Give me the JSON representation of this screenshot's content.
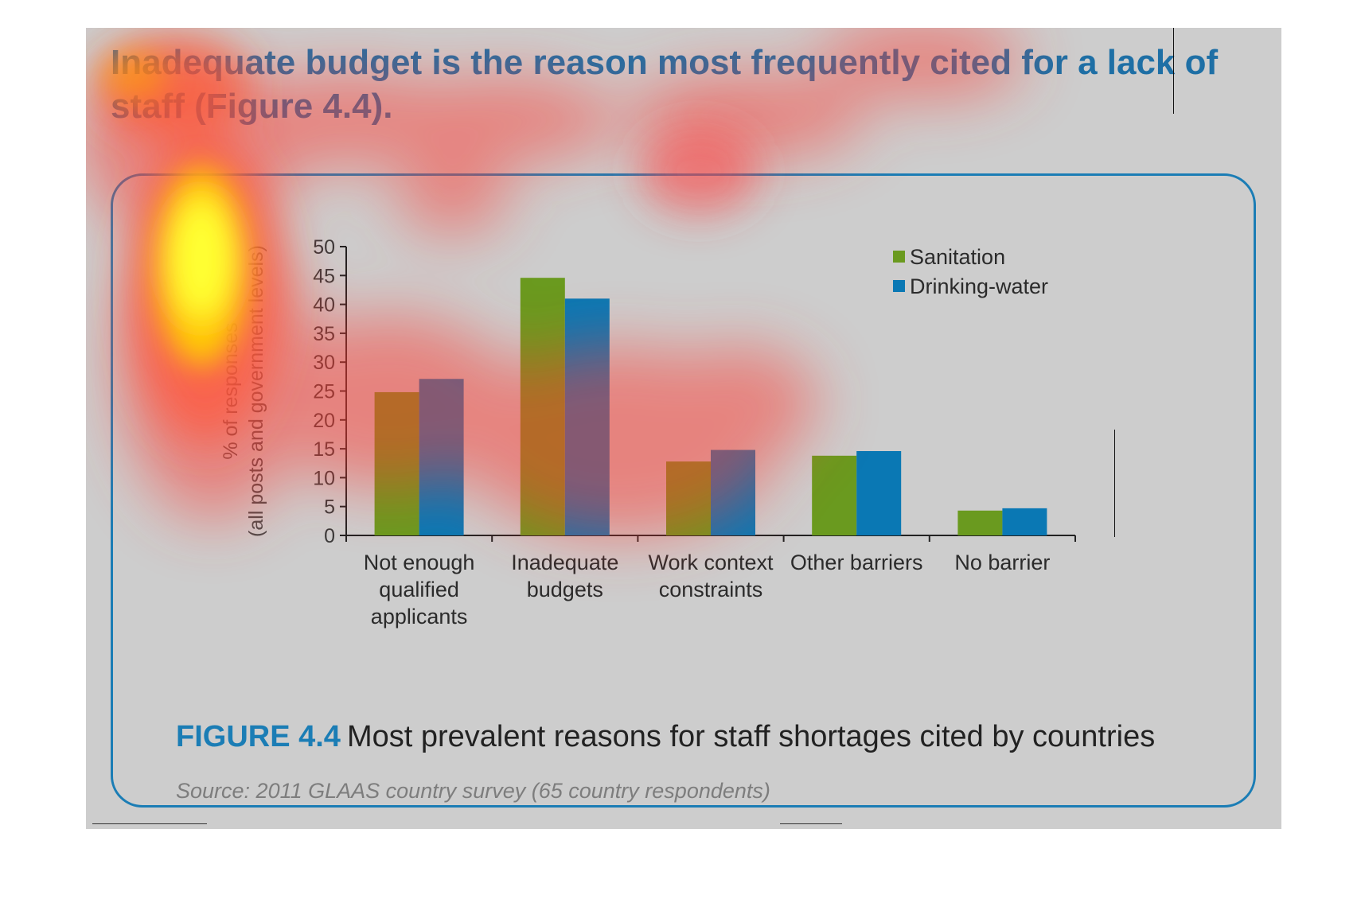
{
  "headline": "Inadequate budget is the reason most frequently cited for a lack of staff (Figure 4.4).",
  "caption": {
    "figure_number": "FIGURE 4.4",
    "title": "Most prevalent reasons for staff shortages cited by countries"
  },
  "source": "Source: 2011 GLAAS country survey (65 country respondents)",
  "colors": {
    "headline": "#1e6fa5",
    "sanitation": "#6a9a1f",
    "drinking_water": "#0a78b4",
    "frame": "#1b7db5",
    "overlay": "heatmap (yellow/red attention overlay)"
  },
  "chart_data": {
    "type": "bar",
    "title": "",
    "xlabel": "",
    "ylabel_lines": [
      "% of responses",
      "(all posts and government levels)"
    ],
    "categories": [
      [
        "Not enough",
        "qualified",
        "applicants"
      ],
      [
        "Inadequate",
        "budgets"
      ],
      [
        "Work context",
        "constraints"
      ],
      [
        "Other barriers"
      ],
      [
        "No barrier"
      ]
    ],
    "series": [
      {
        "name": "Sanitation",
        "values": [
          24.8,
          44.6,
          12.8,
          13.8,
          4.3
        ]
      },
      {
        "name": "Drinking-water",
        "values": [
          27.1,
          41.0,
          14.8,
          14.6,
          4.7
        ]
      }
    ],
    "ylim": [
      0,
      50
    ],
    "yticks": [
      0,
      5,
      10,
      15,
      20,
      25,
      30,
      35,
      40,
      45,
      50
    ],
    "grid": false,
    "legend_position": "top-right"
  }
}
